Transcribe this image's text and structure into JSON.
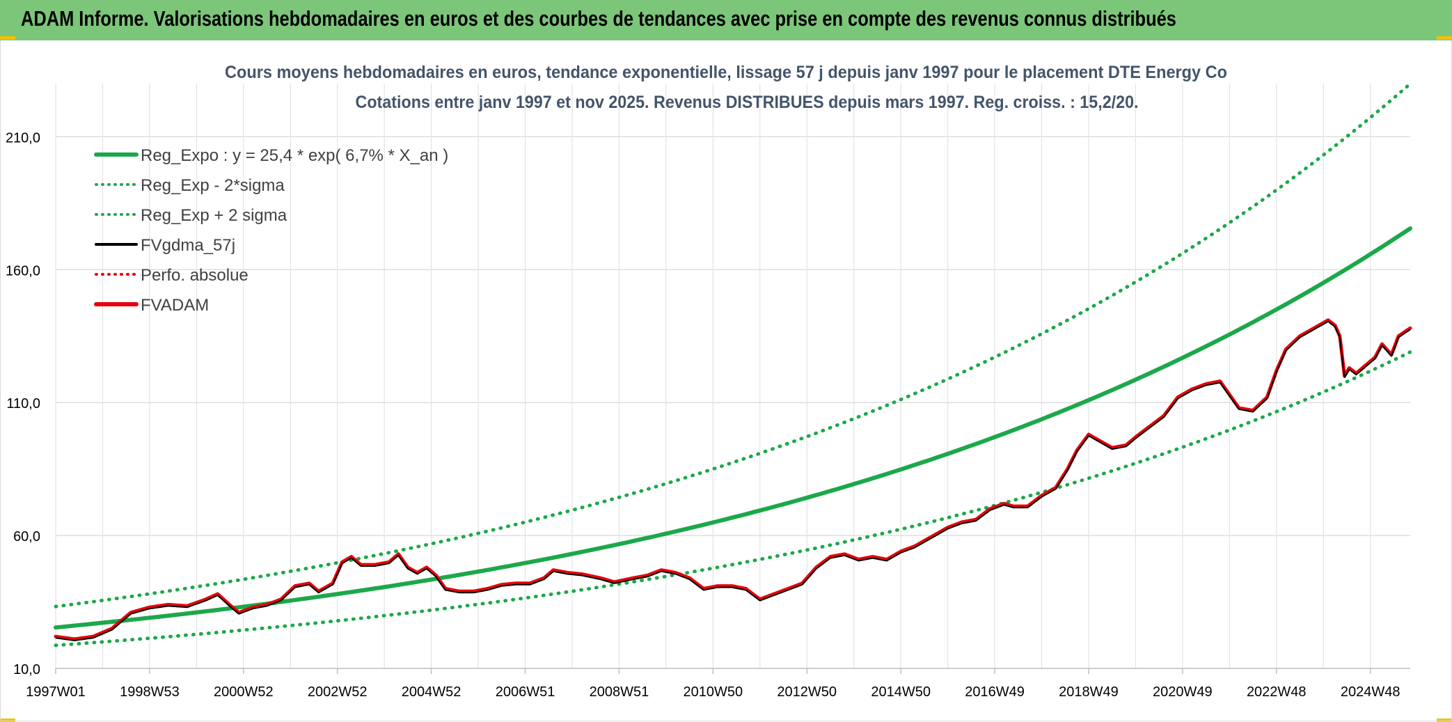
{
  "banner": {
    "title": "ADAM Informe. Valorisations hebdomadaires en euros et des courbes de tendances avec prise en compte des revenus connus distribués"
  },
  "colors": {
    "banner_bg": "#7cc67a",
    "trend_green": "#1ca84a",
    "band_green": "#1ca84a",
    "gdma_black": "#000000",
    "fvadam_red": "#e8000b",
    "perfo_red": "#e8000b"
  },
  "chart_data": {
    "type": "line",
    "title": "Cours moyens hebdomadaires en euros, tendance exponentielle, lissage 57 j depuis janv 1997 pour le placement DTE Energy Co",
    "subtitle": "Cotations entre janv 1997 et nov 2025. Revenus DISTRIBUES depuis mars 1997. Reg. croiss. : 15,2/20.",
    "xlabel": "",
    "ylabel": "",
    "x_range_years": [
      1997.0,
      2025.85
    ],
    "ylim": [
      10,
      230
    ],
    "y_ticks": [
      "210,0",
      "160,0",
      "110,0",
      "60,0",
      "10,0"
    ],
    "y_tick_values": [
      210,
      160,
      110,
      60,
      10
    ],
    "x_tick_labels": [
      "1997W01",
      "1998W53",
      "2000W52",
      "2002W52",
      "2004W52",
      "2006W51",
      "2008W51",
      "2010W50",
      "2012W50",
      "2014W50",
      "2016W49",
      "2018W49",
      "2020W49",
      "2022W48",
      "2024W48"
    ],
    "x_tick_years": [
      1997.0,
      1999.0,
      2001.0,
      2003.0,
      2005.0,
      2007.0,
      2009.0,
      2011.0,
      2013.0,
      2015.0,
      2017.0,
      2019.0,
      2021.0,
      2023.0,
      2025.0
    ],
    "grid": true,
    "legend_position": "top-left",
    "legend": [
      {
        "label": "Reg_Expo : y = 25,4 * exp( 6,7% *  X_an )",
        "style": "solid-thick",
        "color": "#1ca84a"
      },
      {
        "label": "Reg_Exp - 2*sigma",
        "style": "dotted",
        "color": "#1ca84a"
      },
      {
        "label": "Reg_Exp + 2 sigma",
        "style": "dotted",
        "color": "#1ca84a"
      },
      {
        "label": "FVgdma_57j",
        "style": "solid",
        "color": "#000000"
      },
      {
        "label": "Perfo. absolue",
        "style": "dotted",
        "color": "#e8000b"
      },
      {
        "label": "FVADAM",
        "style": "solid-thick",
        "color": "#e8000b"
      }
    ],
    "regression": {
      "a": 25.4,
      "rate": 0.067,
      "lower_factor": 0.735,
      "upper_factor": 1.31
    },
    "series": [
      {
        "name": "FVADAM",
        "points": [
          [
            1997.0,
            22
          ],
          [
            1997.4,
            21
          ],
          [
            1997.8,
            22
          ],
          [
            1998.2,
            25
          ],
          [
            1998.6,
            31
          ],
          [
            1999.0,
            33
          ],
          [
            1999.4,
            34
          ],
          [
            1999.8,
            33.5
          ],
          [
            2000.2,
            36
          ],
          [
            2000.45,
            38
          ],
          [
            2000.7,
            34
          ],
          [
            2000.9,
            31
          ],
          [
            2001.2,
            33
          ],
          [
            2001.5,
            34
          ],
          [
            2001.8,
            36
          ],
          [
            2002.1,
            41
          ],
          [
            2002.4,
            42
          ],
          [
            2002.6,
            39
          ],
          [
            2002.9,
            42
          ],
          [
            2003.1,
            50
          ],
          [
            2003.3,
            52
          ],
          [
            2003.5,
            49
          ],
          [
            2003.8,
            49
          ],
          [
            2004.1,
            50
          ],
          [
            2004.3,
            53
          ],
          [
            2004.5,
            48
          ],
          [
            2004.7,
            46
          ],
          [
            2004.9,
            48
          ],
          [
            2005.1,
            45
          ],
          [
            2005.3,
            40
          ],
          [
            2005.6,
            39
          ],
          [
            2005.9,
            39
          ],
          [
            2006.2,
            40
          ],
          [
            2006.5,
            41.5
          ],
          [
            2006.8,
            42
          ],
          [
            2007.1,
            42
          ],
          [
            2007.4,
            44
          ],
          [
            2007.6,
            47
          ],
          [
            2007.9,
            46
          ],
          [
            2008.2,
            45.5
          ],
          [
            2008.6,
            44
          ],
          [
            2008.9,
            42.5
          ],
          [
            2009.3,
            44
          ],
          [
            2009.6,
            45
          ],
          [
            2009.9,
            47
          ],
          [
            2010.2,
            46
          ],
          [
            2010.5,
            44
          ],
          [
            2010.8,
            40
          ],
          [
            2011.1,
            41
          ],
          [
            2011.4,
            41
          ],
          [
            2011.7,
            40
          ],
          [
            2012.0,
            36
          ],
          [
            2012.3,
            38
          ],
          [
            2012.6,
            40
          ],
          [
            2012.9,
            42
          ],
          [
            2013.2,
            48
          ],
          [
            2013.5,
            52
          ],
          [
            2013.8,
            53
          ],
          [
            2014.1,
            51
          ],
          [
            2014.4,
            52
          ],
          [
            2014.7,
            51
          ],
          [
            2015.0,
            54
          ],
          [
            2015.3,
            56
          ],
          [
            2015.5,
            58
          ],
          [
            2015.8,
            61
          ],
          [
            2016.0,
            63
          ],
          [
            2016.3,
            65
          ],
          [
            2016.6,
            66
          ],
          [
            2016.9,
            70
          ],
          [
            2017.2,
            72
          ],
          [
            2017.4,
            71
          ],
          [
            2017.7,
            71
          ],
          [
            2018.0,
            75
          ],
          [
            2018.3,
            78
          ],
          [
            2018.55,
            85
          ],
          [
            2018.75,
            92
          ],
          [
            2019.0,
            98
          ],
          [
            2019.3,
            95
          ],
          [
            2019.5,
            93
          ],
          [
            2019.8,
            94
          ],
          [
            2020.0,
            97
          ],
          [
            2020.3,
            101
          ],
          [
            2020.6,
            105
          ],
          [
            2020.9,
            112
          ],
          [
            2021.2,
            115
          ],
          [
            2021.5,
            117
          ],
          [
            2021.8,
            118
          ],
          [
            2022.0,
            113
          ],
          [
            2022.2,
            108
          ],
          [
            2022.5,
            107
          ],
          [
            2022.8,
            112
          ],
          [
            2023.0,
            122
          ],
          [
            2023.2,
            130
          ],
          [
            2023.5,
            135
          ],
          [
            2023.8,
            138
          ],
          [
            2024.1,
            141
          ],
          [
            2024.25,
            139
          ],
          [
            2024.35,
            135
          ],
          [
            2024.45,
            120
          ],
          [
            2024.55,
            123
          ],
          [
            2024.7,
            121
          ],
          [
            2024.9,
            124
          ],
          [
            2025.1,
            127
          ],
          [
            2025.25,
            132
          ],
          [
            2025.45,
            128
          ],
          [
            2025.6,
            135
          ],
          [
            2025.85,
            138
          ]
        ]
      }
    ]
  }
}
